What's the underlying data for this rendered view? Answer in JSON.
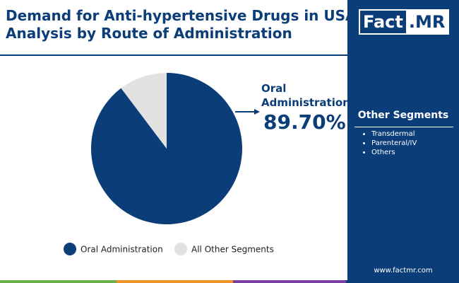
{
  "chart_data": {
    "type": "pie",
    "title": "Demand for Anti-hypertensive Drugs in USA",
    "subtitle": "Analysis by Route of Administration",
    "categories": [
      "Oral Administration",
      "All Other Segments"
    ],
    "values": [
      89.7,
      10.3
    ],
    "value_labels": [
      "89.70%",
      null
    ],
    "colors": [
      "#0b3d78",
      "#e2e2e2"
    ],
    "annotation": "Oral Administration",
    "legend": "bottom"
  },
  "brand": {
    "logo": [
      "Fact",
      ".MR"
    ],
    "website": "www.factmr.com"
  },
  "sidebar": {
    "title": "Other Segments",
    "items": [
      "Transdermal",
      "Parenteral/IV",
      "Others"
    ]
  }
}
